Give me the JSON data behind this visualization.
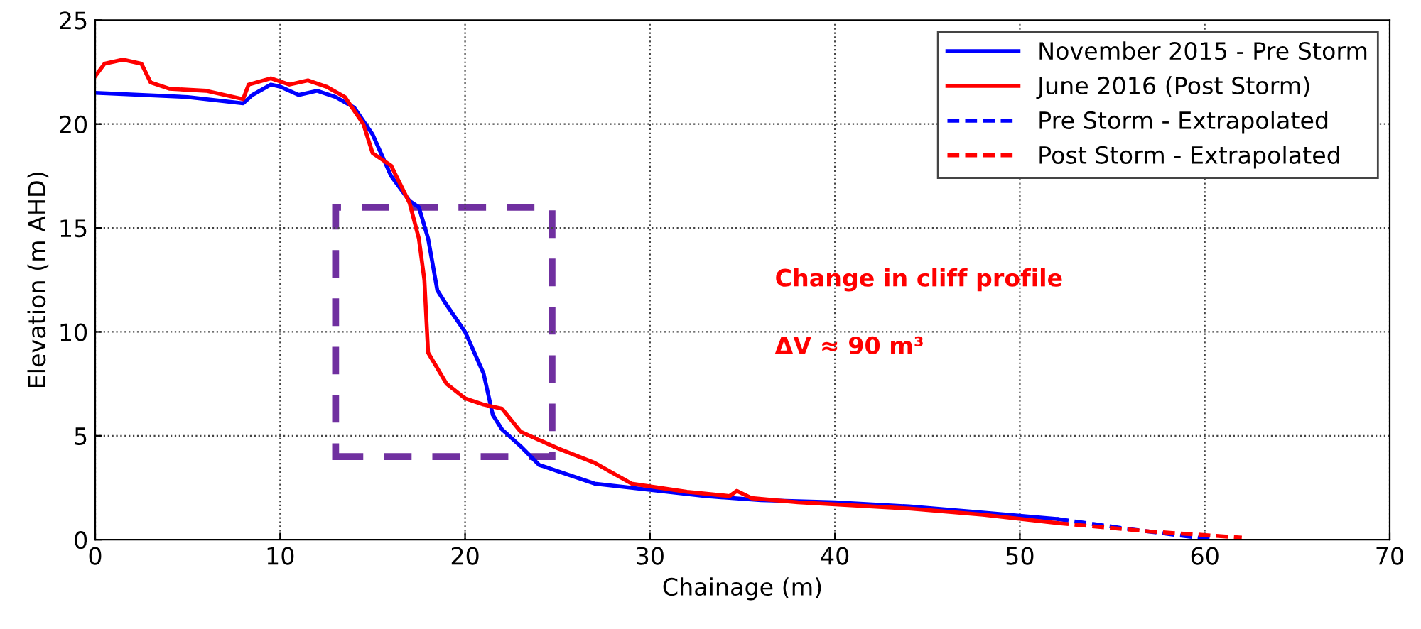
{
  "chart_data": {
    "type": "line",
    "xlabel": "Chainage (m)",
    "ylabel": "Elevation (m AHD)",
    "xlim": [
      0,
      70
    ],
    "xticks": [
      0,
      10,
      20,
      30,
      40,
      50,
      60,
      70
    ],
    "ylim": [
      0,
      25
    ],
    "yticks": [
      0,
      5,
      10,
      15,
      20,
      25
    ],
    "grid": true,
    "legend": "top right",
    "marker": "none",
    "annotations": [
      "Change in cliff profile",
      "ΔV ≈ 90 m³"
    ],
    "series": [
      {
        "name": "November 2015 - Pre Storm",
        "color": "#0000ff",
        "line_style": "solid",
        "x": [
          0,
          5,
          8,
          8.5,
          9.5,
          10,
          11,
          12,
          13,
          14,
          15,
          16,
          17,
          17.5,
          18,
          18.5,
          19,
          20,
          21,
          21.5,
          22,
          23,
          24,
          25,
          27,
          30,
          33,
          36,
          40,
          44,
          48,
          52
        ],
        "values": [
          21.5,
          21.3,
          21.0,
          21.4,
          21.9,
          21.8,
          21.4,
          21.6,
          21.3,
          20.8,
          19.5,
          17.5,
          16.3,
          16.0,
          14.5,
          12.0,
          11.3,
          10.0,
          8.0,
          6.0,
          5.3,
          4.5,
          3.6,
          3.3,
          2.7,
          2.4,
          2.1,
          1.9,
          1.8,
          1.6,
          1.3,
          1.0
        ]
      },
      {
        "name": "June 2016 (Post Storm)",
        "color": "#ff0000",
        "line_style": "solid",
        "x": [
          0,
          0.5,
          1.5,
          2.5,
          3,
          4,
          6,
          8,
          8.3,
          9.5,
          10.5,
          11.5,
          12.5,
          13.5,
          14.5,
          15,
          16,
          17,
          17.5,
          17.8,
          18,
          19,
          20,
          21,
          22,
          23,
          24,
          25,
          27,
          29,
          32,
          34.3,
          34.7,
          35.5,
          38,
          44,
          48,
          52
        ],
        "values": [
          22.3,
          22.9,
          23.1,
          22.9,
          22.0,
          21.7,
          21.6,
          21.2,
          21.9,
          22.2,
          21.9,
          22.1,
          21.8,
          21.3,
          20.0,
          18.6,
          18.0,
          16.2,
          14.5,
          12.5,
          9.0,
          7.5,
          6.8,
          6.5,
          6.3,
          5.2,
          4.8,
          4.4,
          3.7,
          2.7,
          2.3,
          2.1,
          2.35,
          2.0,
          1.8,
          1.5,
          1.2,
          0.8
        ]
      },
      {
        "name": "Pre Storm - Extrapolated",
        "color": "#0000ff",
        "line_style": "dashed",
        "x": [
          52,
          56,
          60.5
        ],
        "values": [
          1.0,
          0.5,
          0.0
        ]
      },
      {
        "name": "Post Storm - Extrapolated",
        "color": "#ff0000",
        "line_style": "dashed",
        "x": [
          52,
          57,
          62
        ],
        "values": [
          0.8,
          0.4,
          0.1
        ]
      }
    ]
  }
}
